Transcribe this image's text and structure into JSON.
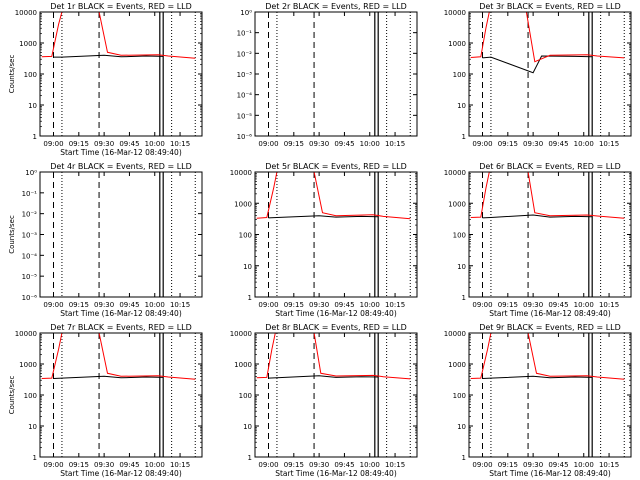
{
  "chart_data": [
    {
      "type": "line",
      "title": "Det 1r BLACK = Events, RED = LLD",
      "xlabel": "Start Time (16-Mar-12 08:49:40)",
      "ylabel": "Counts/sec",
      "yscale": "log",
      "ylim": [
        1,
        10000
      ],
      "yticks": [
        "1",
        "10",
        "100",
        "1000",
        "10000"
      ],
      "xlim": [
        "08:52",
        "10:28"
      ],
      "xticks": [
        "09:00",
        "09:15",
        "09:30",
        "09:45",
        "10:00",
        "10:15"
      ],
      "series": [
        {
          "color": "#000000",
          "x": [
            "09:00",
            "09:05",
            "09:30",
            "09:40",
            "09:55",
            "10:05"
          ],
          "values": [
            350,
            350,
            400,
            360,
            380,
            370
          ]
        },
        {
          "color": "#ff0000",
          "x": [
            "08:53",
            "08:59",
            "09:03",
            "09:05",
            "09:27",
            "09:32",
            "09:40",
            "10:02",
            "10:08",
            "10:24"
          ],
          "values": [
            360,
            370,
            4000,
            10000,
            10000,
            500,
            400,
            420,
            380,
            320
          ]
        }
      ],
      "vlines_dashed": [
        "09:00",
        "09:27"
      ],
      "vlines_dotted": [
        "09:05",
        "10:10",
        "10:24"
      ],
      "vlines_solid": [
        "10:03",
        "10:05"
      ]
    },
    {
      "type": "line",
      "title": "Det 2r BLACK = Events, RED = LLD",
      "xlabel": "",
      "ylabel": "",
      "yscale": "log",
      "ylim": [
        1e-06,
        1.0
      ],
      "yticks": [
        "10⁰",
        "10⁻¹",
        "10⁻²",
        "10⁻³",
        "10⁻⁴",
        "10⁻⁵",
        "10⁻⁶"
      ],
      "xlim": [
        "08:52",
        "10:28"
      ],
      "xticks": [
        "09:00",
        "09:15",
        "09:30",
        "09:45",
        "10:00",
        "10:15"
      ],
      "series": [],
      "vlines_dashed": [
        "09:00",
        "09:27"
      ],
      "vlines_dotted": [
        "09:05",
        "10:10",
        "10:24"
      ],
      "vlines_solid": [
        "10:03",
        "10:05"
      ]
    },
    {
      "type": "line",
      "title": "Det 3r BLACK = Events, RED = LLD",
      "xlabel": "",
      "ylabel": "",
      "yscale": "log",
      "ylim": [
        1,
        10000
      ],
      "yticks": [
        "1",
        "10",
        "100",
        "1000",
        "10000"
      ],
      "xlim": [
        "08:52",
        "10:28"
      ],
      "xticks": [
        "09:00",
        "09:15",
        "09:30",
        "09:45",
        "10:00",
        "10:15"
      ],
      "series": [
        {
          "color": "#000000",
          "x": [
            "09:00",
            "09:05",
            "09:30",
            "09:35",
            "09:55",
            "10:05"
          ],
          "values": [
            330,
            350,
            110,
            380,
            370,
            360
          ]
        },
        {
          "color": "#ff0000",
          "x": [
            "08:53",
            "08:59",
            "09:02",
            "09:04",
            "09:26",
            "09:31",
            "09:40",
            "10:02",
            "10:08",
            "10:24"
          ],
          "values": [
            340,
            360,
            3000,
            10000,
            10000,
            250,
            400,
            420,
            380,
            330
          ]
        }
      ],
      "vlines_dashed": [
        "09:00",
        "09:27"
      ],
      "vlines_dotted": [
        "09:05",
        "10:10",
        "10:24"
      ],
      "vlines_solid": [
        "10:03",
        "10:05"
      ]
    },
    {
      "type": "line",
      "title": "Det 4r BLACK = Events, RED = LLD",
      "xlabel": "Start Time (16-Mar-12 08:49:40)",
      "ylabel": "Counts/sec",
      "yscale": "log",
      "ylim": [
        1e-06,
        1.0
      ],
      "yticks": [
        "10⁰",
        "10⁻¹",
        "10⁻²",
        "10⁻³",
        "10⁻⁴",
        "10⁻⁵",
        "10⁻⁶"
      ],
      "xlim": [
        "08:52",
        "10:28"
      ],
      "xticks": [
        "09:00",
        "09:15",
        "09:30",
        "09:45",
        "10:00",
        "10:15"
      ],
      "series": [],
      "vlines_dashed": [
        "09:00",
        "09:27"
      ],
      "vlines_dotted": [
        "09:05",
        "10:10",
        "10:24"
      ],
      "vlines_solid": [
        "10:03",
        "10:05"
      ]
    },
    {
      "type": "line",
      "title": "Det 5r BLACK = Events, RED = LLD",
      "xlabel": "Start Time (16-Mar-12 08:49:40)",
      "ylabel": "",
      "yscale": "log",
      "ylim": [
        1,
        10000
      ],
      "yticks": [
        "1",
        "10",
        "100",
        "1000",
        "10000"
      ],
      "xlim": [
        "08:52",
        "10:28"
      ],
      "xticks": [
        "09:00",
        "09:15",
        "09:30",
        "09:45",
        "10:00",
        "10:15"
      ],
      "series": [
        {
          "color": "#000000",
          "x": [
            "09:00",
            "09:05",
            "09:30",
            "09:40",
            "09:55",
            "10:05"
          ],
          "values": [
            340,
            350,
            400,
            360,
            380,
            370
          ]
        },
        {
          "color": "#ff0000",
          "x": [
            "08:53",
            "08:59",
            "09:03",
            "09:05",
            "09:27",
            "09:32",
            "09:40",
            "10:02",
            "10:08",
            "10:24"
          ],
          "values": [
            330,
            350,
            3000,
            10000,
            10000,
            500,
            400,
            430,
            380,
            320
          ]
        }
      ],
      "vlines_dashed": [
        "09:00",
        "09:27"
      ],
      "vlines_dotted": [
        "09:05",
        "10:10",
        "10:24"
      ],
      "vlines_solid": [
        "10:03",
        "10:05"
      ]
    },
    {
      "type": "line",
      "title": "Det 6r BLACK = Events, RED = LLD",
      "xlabel": "Start Time (16-Mar-12 08:49:40)",
      "ylabel": "",
      "yscale": "log",
      "ylim": [
        1,
        10000
      ],
      "yticks": [
        "1",
        "10",
        "100",
        "1000",
        "10000"
      ],
      "xlim": [
        "08:52",
        "10:28"
      ],
      "xticks": [
        "09:00",
        "09:15",
        "09:30",
        "09:45",
        "10:00",
        "10:15"
      ],
      "series": [
        {
          "color": "#000000",
          "x": [
            "09:00",
            "09:05",
            "09:30",
            "09:40",
            "09:55",
            "10:05"
          ],
          "values": [
            340,
            350,
            420,
            360,
            380,
            370
          ]
        },
        {
          "color": "#ff0000",
          "x": [
            "08:53",
            "08:59",
            "09:02",
            "09:04",
            "09:27",
            "09:31",
            "09:40",
            "10:02",
            "10:08",
            "10:24"
          ],
          "values": [
            350,
            360,
            3000,
            10000,
            10000,
            500,
            400,
            420,
            390,
            330
          ]
        }
      ],
      "vlines_dashed": [
        "09:00",
        "09:27"
      ],
      "vlines_dotted": [
        "09:05",
        "10:10",
        "10:24"
      ],
      "vlines_solid": [
        "10:03",
        "10:05"
      ]
    },
    {
      "type": "line",
      "title": "Det 7r BLACK = Events, RED = LLD",
      "xlabel": "Start Time (16-Mar-12 08:49:40)",
      "ylabel": "Counts/sec",
      "yscale": "log",
      "ylim": [
        1,
        10000
      ],
      "yticks": [
        "1",
        "10",
        "100",
        "1000",
        "10000"
      ],
      "xlim": [
        "08:52",
        "10:28"
      ],
      "xticks": [
        "09:00",
        "09:15",
        "09:30",
        "09:45",
        "10:00",
        "10:15"
      ],
      "series": [
        {
          "color": "#000000",
          "x": [
            "09:00",
            "09:05",
            "09:30",
            "09:40",
            "09:55",
            "10:05"
          ],
          "values": [
            340,
            350,
            400,
            360,
            380,
            370
          ]
        },
        {
          "color": "#ff0000",
          "x": [
            "08:53",
            "08:59",
            "09:03",
            "09:05",
            "09:27",
            "09:32",
            "09:40",
            "10:02",
            "10:08",
            "10:24"
          ],
          "values": [
            340,
            350,
            3000,
            10000,
            10000,
            500,
            400,
            420,
            380,
            320
          ]
        }
      ],
      "vlines_dashed": [
        "09:00",
        "09:27"
      ],
      "vlines_dotted": [
        "09:05",
        "10:10",
        "10:24"
      ],
      "vlines_solid": [
        "10:03",
        "10:05"
      ]
    },
    {
      "type": "line",
      "title": "Det 8r BLACK = Events, RED = LLD",
      "xlabel": "Start Time (16-Mar-12 08:49:40)",
      "ylabel": "",
      "yscale": "log",
      "ylim": [
        1,
        10000
      ],
      "yticks": [
        "1",
        "10",
        "100",
        "1000",
        "10000"
      ],
      "xlim": [
        "08:52",
        "10:28"
      ],
      "xticks": [
        "09:00",
        "09:15",
        "09:30",
        "09:45",
        "10:00",
        "10:15"
      ],
      "series": [
        {
          "color": "#000000",
          "x": [
            "09:00",
            "09:05",
            "09:30",
            "09:40",
            "09:55",
            "10:05"
          ],
          "values": [
            350,
            360,
            420,
            370,
            390,
            380
          ]
        },
        {
          "color": "#ff0000",
          "x": [
            "08:53",
            "08:59",
            "09:02",
            "09:04",
            "09:27",
            "09:31",
            "09:40",
            "10:02",
            "10:08",
            "10:24"
          ],
          "values": [
            360,
            370,
            3000,
            10000,
            10000,
            500,
            410,
            430,
            390,
            330
          ]
        }
      ],
      "vlines_dashed": [
        "09:00",
        "09:27"
      ],
      "vlines_dotted": [
        "09:05",
        "10:10",
        "10:24"
      ],
      "vlines_solid": [
        "10:03",
        "10:05"
      ]
    },
    {
      "type": "line",
      "title": "Det 9r BLACK = Events, RED = LLD",
      "xlabel": "Start Time (16-Mar-12 08:49:40)",
      "ylabel": "",
      "yscale": "log",
      "ylim": [
        1,
        10000
      ],
      "yticks": [
        "1",
        "10",
        "100",
        "1000",
        "10000"
      ],
      "xlim": [
        "08:52",
        "10:28"
      ],
      "xticks": [
        "09:00",
        "09:15",
        "09:30",
        "09:45",
        "10:00",
        "10:15"
      ],
      "series": [
        {
          "color": "#000000",
          "x": [
            "09:00",
            "09:05",
            "09:30",
            "09:40",
            "09:55",
            "10:05"
          ],
          "values": [
            340,
            350,
            400,
            360,
            380,
            370
          ]
        },
        {
          "color": "#ff0000",
          "x": [
            "08:53",
            "08:59",
            "09:03",
            "09:05",
            "09:27",
            "09:32",
            "09:40",
            "10:02",
            "10:08",
            "10:24"
          ],
          "values": [
            340,
            350,
            3000,
            10000,
            10000,
            500,
            400,
            420,
            380,
            320
          ]
        }
      ],
      "vlines_dashed": [
        "09:00",
        "09:27"
      ],
      "vlines_dotted": [
        "09:05",
        "10:10",
        "10:24"
      ],
      "vlines_solid": [
        "10:03",
        "10:05"
      ]
    }
  ]
}
